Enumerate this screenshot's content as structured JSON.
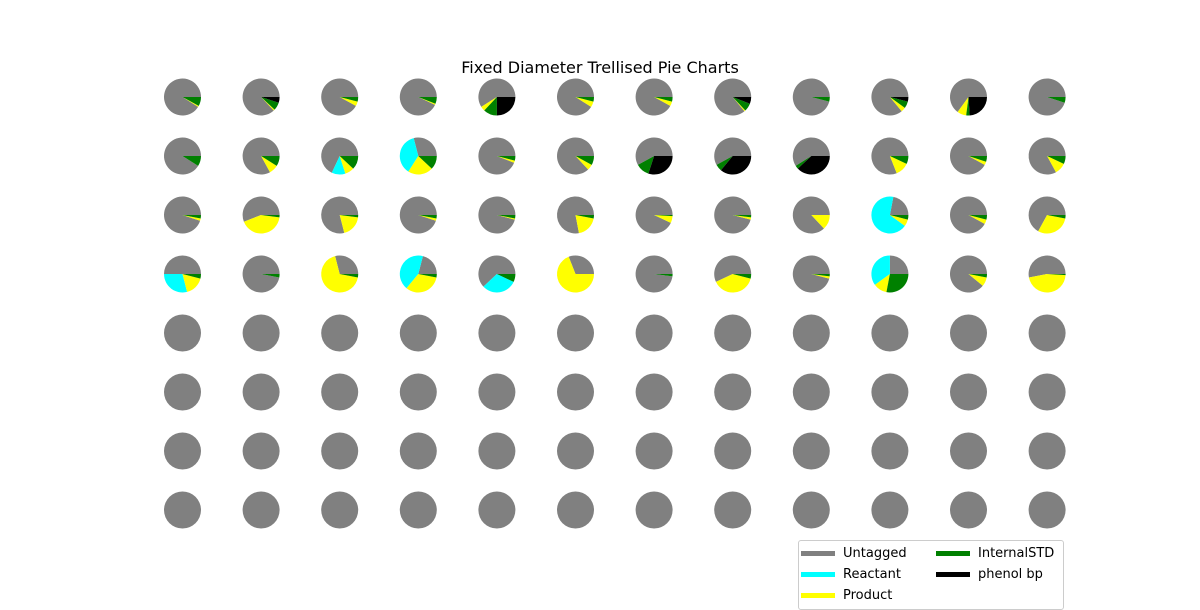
{
  "chart_data": {
    "type": "pie",
    "title": "Fixed Diameter Trellised Pie Charts",
    "grid": {
      "rows": 8,
      "cols": 12
    },
    "categories": [
      "Untagged",
      "Reactant",
      "Product",
      "InternalSTD",
      "phenol bp"
    ],
    "colors": {
      "Untagged": "#808080",
      "Reactant": "#00ffff",
      "Product": "#ffff00",
      "InternalSTD": "#008000",
      "phenol bp": "#000000"
    },
    "pies": [
      [
        {
          "Untagged": 91,
          "Product": 1,
          "InternalSTD": 8
        },
        {
          "Untagged": 87,
          "Product": 1,
          "InternalSTD": 7,
          "phenol bp": 5
        },
        {
          "Untagged": 92,
          "Product": 4,
          "InternalSTD": 4
        },
        {
          "Untagged": 93,
          "Product": 1,
          "InternalSTD": 6
        },
        {
          "Untagged": 59,
          "Product": 4,
          "InternalSTD": 12,
          "phenol bp": 25
        },
        {
          "Untagged": 91,
          "Product": 5,
          "InternalSTD": 4
        },
        {
          "Untagged": 92,
          "Product": 4,
          "InternalSTD": 4
        },
        {
          "Untagged": 86,
          "Product": 1,
          "InternalSTD": 7,
          "phenol bp": 6
        },
        {
          "Untagged": 96,
          "InternalSTD": 4
        },
        {
          "Untagged": 86,
          "Product": 4,
          "InternalSTD": 6,
          "phenol bp": 4
        },
        {
          "Untagged": 65,
          "Product": 8,
          "InternalSTD": 3,
          "phenol bp": 24
        },
        {
          "Untagged": 95,
          "InternalSTD": 5
        }
      ],
      [
        {
          "Untagged": 91,
          "InternalSTD": 9
        },
        {
          "Untagged": 83,
          "Product": 8,
          "InternalSTD": 9
        },
        {
          "Untagged": 68,
          "Reactant": 12,
          "Product": 8,
          "InternalSTD": 12
        },
        {
          "Untagged": 29,
          "Reactant": 37,
          "Product": 22,
          "InternalSTD": 12
        },
        {
          "Untagged": 94,
          "Product": 2,
          "InternalSTD": 4
        },
        {
          "Untagged": 87,
          "Product": 5,
          "InternalSTD": 8
        },
        {
          "Untagged": 58,
          "InternalSTD": 12,
          "phenol bp": 30
        },
        {
          "Untagged": 58,
          "InternalSTD": 6,
          "phenol bp": 36
        },
        {
          "Untagged": 59,
          "InternalSTD": 3,
          "phenol bp": 38
        },
        {
          "Untagged": 81,
          "Product": 12,
          "InternalSTD": 7
        },
        {
          "Untagged": 92,
          "Product": 3,
          "InternalSTD": 5
        },
        {
          "Untagged": 83,
          "Product": 10,
          "InternalSTD": 7
        }
      ],
      [
        {
          "Untagged": 95,
          "Product": 2,
          "InternalSTD": 3
        },
        {
          "Untagged": 56,
          "Product": 42,
          "InternalSTD": 2
        },
        {
          "Untagged": 79,
          "Product": 19,
          "InternalSTD": 2
        },
        {
          "Untagged": 95,
          "Product": 2,
          "InternalSTD": 3
        },
        {
          "Untagged": 96,
          "Product": 1,
          "InternalSTD": 3
        },
        {
          "Untagged": 78,
          "Product": 19,
          "InternalSTD": 3
        },
        {
          "Untagged": 93,
          "Product": 6,
          "InternalSTD": 1
        },
        {
          "Untagged": 96,
          "Product": 2,
          "InternalSTD": 2
        },
        {
          "Untagged": 87,
          "Product": 13
        },
        {
          "Untagged": 22,
          "Reactant": 68,
          "Product": 6,
          "InternalSTD": 4
        },
        {
          "Untagged": 92,
          "Product": 4,
          "InternalSTD": 4
        },
        {
          "Untagged": 67,
          "Product": 30,
          "InternalSTD": 3
        }
      ],
      [
        {
          "Untagged": 50,
          "Reactant": 29,
          "Product": 17,
          "InternalSTD": 4
        },
        {
          "Untagged": 97,
          "InternalSTD": 3
        },
        {
          "Untagged": 29,
          "Product": 68,
          "InternalSTD": 3
        },
        {
          "Untagged": 21,
          "Reactant": 43,
          "Product": 33,
          "InternalSTD": 3
        },
        {
          "Untagged": 62,
          "Reactant": 31,
          "InternalSTD": 7
        },
        {
          "Untagged": 31,
          "Product": 69
        },
        {
          "Untagged": 98,
          "InternalSTD": 2
        },
        {
          "Untagged": 57,
          "Product": 39,
          "InternalSTD": 4
        },
        {
          "Untagged": 96,
          "Product": 2,
          "InternalSTD": 2
        },
        {
          "Untagged": 25,
          "Reactant": 35,
          "Product": 12,
          "InternalSTD": 28
        },
        {
          "Untagged": 89,
          "Product": 8,
          "InternalSTD": 3
        },
        {
          "Untagged": 53,
          "Product": 46,
          "InternalSTD": 1
        }
      ],
      [
        {
          "Untagged": 100
        },
        {
          "Untagged": 100
        },
        {
          "Untagged": 100
        },
        {
          "Untagged": 100
        },
        {
          "Untagged": 100
        },
        {
          "Untagged": 100
        },
        {
          "Untagged": 100
        },
        {
          "Untagged": 100
        },
        {
          "Untagged": 100
        },
        {
          "Untagged": 100
        },
        {
          "Untagged": 100
        },
        {
          "Untagged": 100
        }
      ],
      [
        {
          "Untagged": 100
        },
        {
          "Untagged": 100
        },
        {
          "Untagged": 100
        },
        {
          "Untagged": 100
        },
        {
          "Untagged": 100
        },
        {
          "Untagged": 100
        },
        {
          "Untagged": 100
        },
        {
          "Untagged": 100
        },
        {
          "Untagged": 100
        },
        {
          "Untagged": 100
        },
        {
          "Untagged": 100
        },
        {
          "Untagged": 100
        }
      ],
      [
        {
          "Untagged": 100
        },
        {
          "Untagged": 100
        },
        {
          "Untagged": 100
        },
        {
          "Untagged": 100
        },
        {
          "Untagged": 100
        },
        {
          "Untagged": 100
        },
        {
          "Untagged": 100
        },
        {
          "Untagged": 100
        },
        {
          "Untagged": 100
        },
        {
          "Untagged": 100
        },
        {
          "Untagged": 100
        },
        {
          "Untagged": 100
        }
      ],
      [
        {
          "Untagged": 100
        },
        {
          "Untagged": 100
        },
        {
          "Untagged": 100
        },
        {
          "Untagged": 100
        },
        {
          "Untagged": 100
        },
        {
          "Untagged": 100
        },
        {
          "Untagged": 100
        },
        {
          "Untagged": 100
        },
        {
          "Untagged": 100
        },
        {
          "Untagged": 100
        },
        {
          "Untagged": 100
        },
        {
          "Untagged": 100
        }
      ]
    ],
    "legend": {
      "placement": "bottom-right",
      "items": [
        {
          "label": "Untagged",
          "color": "#808080"
        },
        {
          "label": "Reactant",
          "color": "#00ffff"
        },
        {
          "label": "Product",
          "color": "#ffff00"
        },
        {
          "label": "InternalSTD",
          "color": "#008000"
        },
        {
          "label": "phenol bp",
          "color": "#000000"
        }
      ]
    }
  }
}
